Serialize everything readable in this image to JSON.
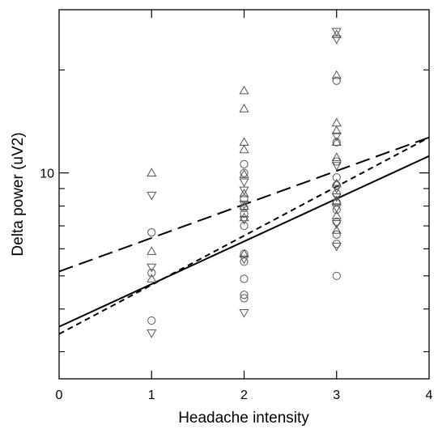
{
  "chart_data": {
    "type": "scatter",
    "xlabel": "Headache intensity",
    "ylabel": "Delta power (uV2)",
    "y_scale": "log",
    "xlim": [
      0,
      4
    ],
    "ylim": [
      2.5,
      30
    ],
    "x_ticks": [
      0,
      1,
      2,
      3,
      4
    ],
    "y_tick_labels": [
      {
        "value": 10,
        "label": "10"
      }
    ],
    "y_minor_ticks": [
      3,
      4,
      5,
      6,
      7,
      8,
      9,
      20
    ],
    "grid": false,
    "legend": "none",
    "marker_types": [
      "triangle-up",
      "triangle-down",
      "circle"
    ],
    "series": [
      {
        "marker": "triangle-up",
        "points": [
          {
            "x": 1,
            "y": 10.0
          },
          {
            "x": 1,
            "y": 5.9
          },
          {
            "x": 1,
            "y": 4.9
          },
          {
            "x": 2,
            "y": 17.4
          },
          {
            "x": 2,
            "y": 15.4
          },
          {
            "x": 2,
            "y": 12.3
          },
          {
            "x": 2,
            "y": 11.7
          },
          {
            "x": 2,
            "y": 9.9
          },
          {
            "x": 2,
            "y": 8.7
          },
          {
            "x": 2,
            "y": 8.0
          },
          {
            "x": 2,
            "y": 7.4
          },
          {
            "x": 2,
            "y": 5.8
          },
          {
            "x": 3,
            "y": 25.4
          },
          {
            "x": 3,
            "y": 19.3
          },
          {
            "x": 3,
            "y": 14.0
          },
          {
            "x": 3,
            "y": 13.3
          },
          {
            "x": 3,
            "y": 12.3
          },
          {
            "x": 3,
            "y": 11.1
          },
          {
            "x": 3,
            "y": 9.3
          },
          {
            "x": 3,
            "y": 8.3
          },
          {
            "x": 3,
            "y": 7.5
          },
          {
            "x": 3,
            "y": 6.8
          }
        ]
      },
      {
        "marker": "triangle-down",
        "points": [
          {
            "x": 1,
            "y": 8.6
          },
          {
            "x": 1,
            "y": 5.3
          },
          {
            "x": 1,
            "y": 3.4
          },
          {
            "x": 2,
            "y": 9.4
          },
          {
            "x": 2,
            "y": 8.9
          },
          {
            "x": 2,
            "y": 8.1
          },
          {
            "x": 2,
            "y": 7.3
          },
          {
            "x": 2,
            "y": 5.6
          },
          {
            "x": 2,
            "y": 3.9
          },
          {
            "x": 3,
            "y": 25.9
          },
          {
            "x": 3,
            "y": 24.6
          },
          {
            "x": 3,
            "y": 12.8
          },
          {
            "x": 3,
            "y": 10.5
          },
          {
            "x": 3,
            "y": 9.0
          },
          {
            "x": 3,
            "y": 8.5
          },
          {
            "x": 3,
            "y": 7.9
          },
          {
            "x": 3,
            "y": 7.1
          },
          {
            "x": 3,
            "y": 6.1
          }
        ]
      },
      {
        "marker": "circle",
        "points": [
          {
            "x": 1,
            "y": 6.7
          },
          {
            "x": 1,
            "y": 5.1
          },
          {
            "x": 1,
            "y": 3.7
          },
          {
            "x": 2,
            "y": 10.6
          },
          {
            "x": 2,
            "y": 10.0
          },
          {
            "x": 2,
            "y": 8.4
          },
          {
            "x": 2,
            "y": 7.9
          },
          {
            "x": 2,
            "y": 7.6
          },
          {
            "x": 2,
            "y": 7.0
          },
          {
            "x": 2,
            "y": 5.8
          },
          {
            "x": 2,
            "y": 5.5
          },
          {
            "x": 2,
            "y": 4.9
          },
          {
            "x": 2,
            "y": 4.4
          },
          {
            "x": 2,
            "y": 4.3
          },
          {
            "x": 3,
            "y": 18.6
          },
          {
            "x": 3,
            "y": 12.3
          },
          {
            "x": 3,
            "y": 10.8
          },
          {
            "x": 3,
            "y": 9.7
          },
          {
            "x": 3,
            "y": 9.2
          },
          {
            "x": 3,
            "y": 8.7
          },
          {
            "x": 3,
            "y": 8.2
          },
          {
            "x": 3,
            "y": 7.8
          },
          {
            "x": 3,
            "y": 7.2
          },
          {
            "x": 3,
            "y": 6.6
          },
          {
            "x": 3,
            "y": 6.2
          },
          {
            "x": 3,
            "y": 5.0
          }
        ]
      }
    ],
    "fit_lines": [
      {
        "style": "solid",
        "x": [
          0,
          4
        ],
        "y": [
          3.55,
          11.2
        ]
      },
      {
        "style": "short-dash",
        "x": [
          0,
          4
        ],
        "y": [
          3.38,
          12.7
        ]
      },
      {
        "style": "long-dash",
        "x": [
          0,
          4
        ],
        "y": [
          5.15,
          12.7
        ]
      }
    ]
  }
}
